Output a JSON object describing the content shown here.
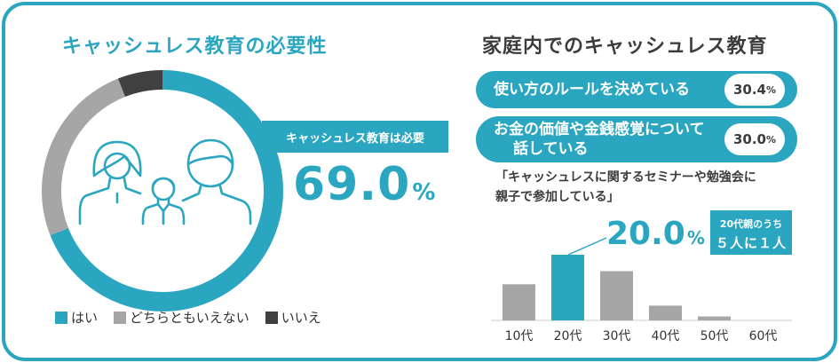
{
  "left": {
    "title": "キャッシュレス教育の必要性",
    "callout": "キャッシュレス教育は必要",
    "big_value": "69.0",
    "big_unit": "%",
    "legend": [
      {
        "label": "はい",
        "color": "#2aa6c1"
      },
      {
        "label": "どちらともいえない",
        "color": "#a6a6a6"
      },
      {
        "label": "いいえ",
        "color": "#404040"
      }
    ]
  },
  "right": {
    "title": "家庭内でのキャッシュレス教育",
    "items": [
      {
        "label": "使い方のルールを決めている",
        "value": "30.4",
        "unit": "%"
      },
      {
        "label_line1": "お金の価値や金銭感覚について",
        "label_line2": "話している",
        "value": "30.0",
        "unit": "%"
      }
    ],
    "note_line1": "「キャッシュレスに関するセミナーや勉強会に",
    "note_line2": "親子で参加している」",
    "big_value": "20.0",
    "big_unit": "%",
    "badge_line1": "20代親のうち",
    "badge_line2": "５人に１人"
  },
  "chart_data": [
    {
      "type": "pie",
      "categories": [
        "はい",
        "どちらともいえない",
        "いいえ"
      ],
      "values": [
        69.0,
        25.0,
        6.0
      ],
      "colors": [
        "#2aa6c1",
        "#a6a6a6",
        "#404040"
      ]
    },
    {
      "type": "bar",
      "categories": [
        "10代",
        "20代",
        "30代",
        "40代",
        "50代",
        "60代"
      ],
      "values": [
        11,
        20.0,
        15,
        4.5,
        1.2,
        0
      ],
      "highlight": "20代",
      "colors": {
        "default": "#a6a6a6",
        "highlight": "#2aa6c1"
      }
    }
  ]
}
